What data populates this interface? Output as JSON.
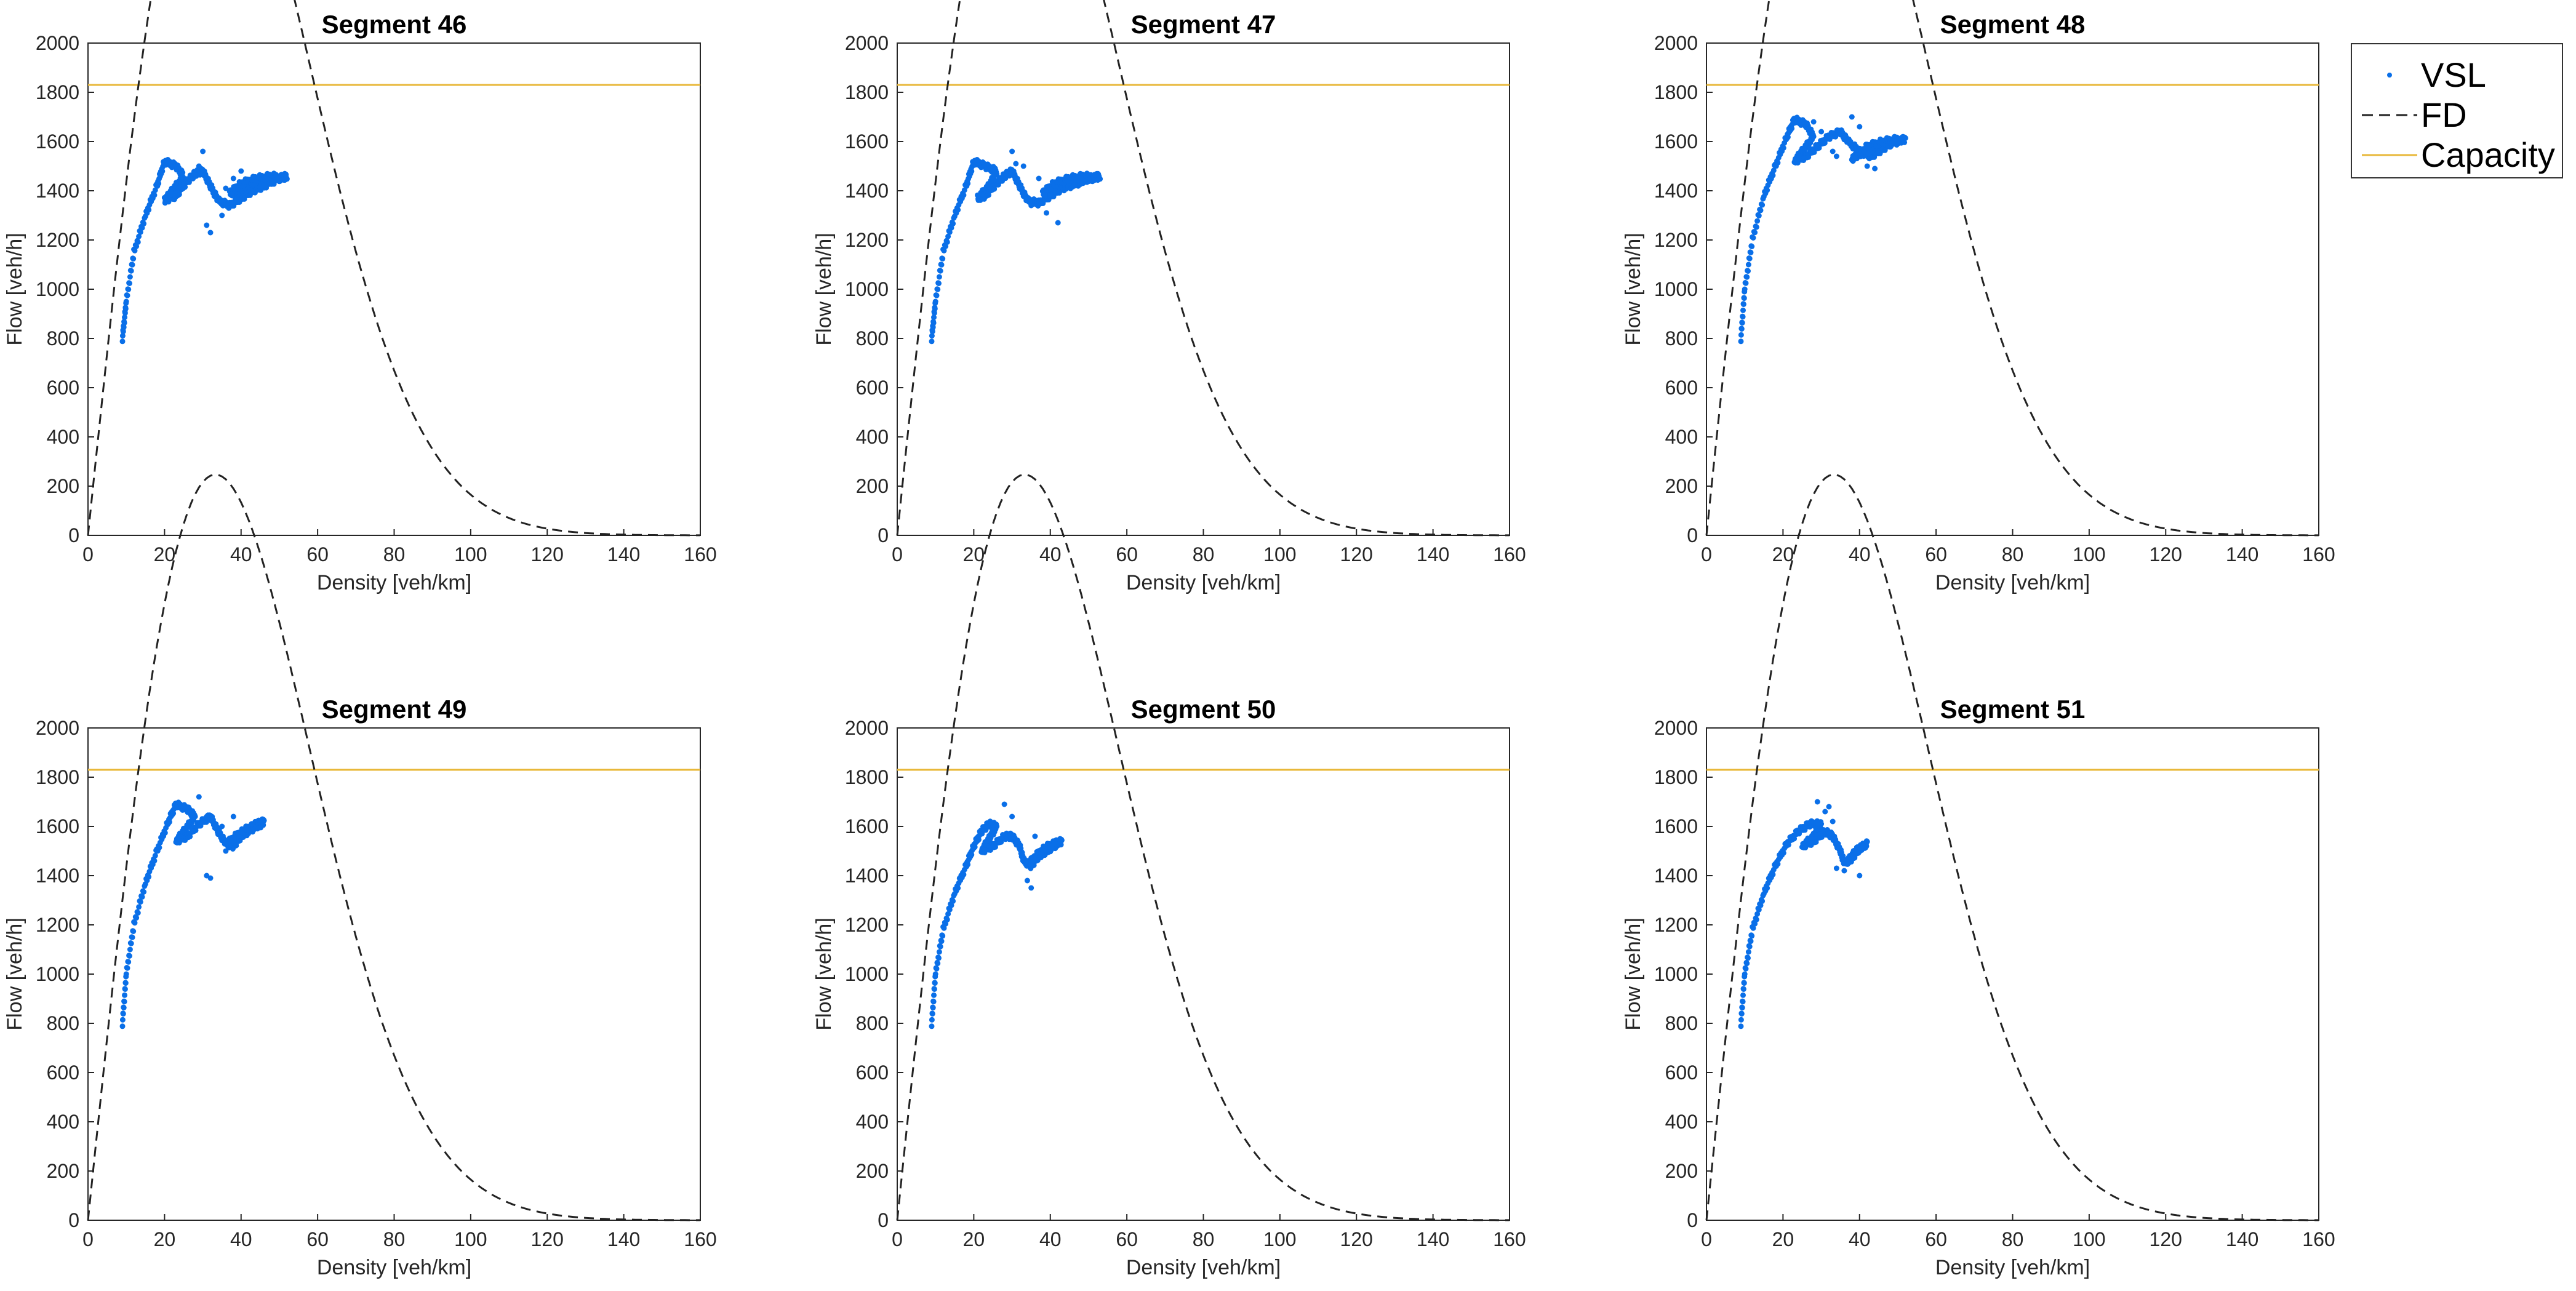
{
  "chart_data": [
    {
      "type": "scatter",
      "title": "Segment 46",
      "xlabel": "Density [veh/km]",
      "ylabel": "Flow [veh/h]",
      "xlim": [
        0,
        160
      ],
      "ylim": [
        0,
        2000
      ],
      "xticks": [
        "0",
        "20",
        "40",
        "60",
        "80",
        "100",
        "120",
        "140",
        "160"
      ],
      "yticks": [
        "0",
        "200",
        "400",
        "600",
        "800",
        "1000",
        "1200",
        "1400",
        "1600",
        "1800",
        "2000"
      ],
      "capacity": 1830,
      "vsl_trace": [
        [
          9,
          800
        ],
        [
          10,
          950
        ],
        [
          12,
          1150
        ],
        [
          15,
          1300
        ],
        [
          18,
          1420
        ],
        [
          20,
          1520
        ],
        [
          23,
          1500
        ],
        [
          25,
          1460
        ],
        [
          22,
          1400
        ],
        [
          20,
          1360
        ],
        [
          23,
          1380
        ],
        [
          26,
          1440
        ],
        [
          28,
          1470
        ],
        [
          30,
          1480
        ],
        [
          32,
          1420
        ],
        [
          34,
          1360
        ],
        [
          37,
          1340
        ],
        [
          40,
          1370
        ],
        [
          43,
          1400
        ],
        [
          46,
          1420
        ],
        [
          50,
          1450
        ],
        [
          52,
          1460
        ],
        [
          48,
          1440
        ],
        [
          44,
          1420
        ],
        [
          40,
          1400
        ],
        [
          37,
          1390
        ],
        [
          40,
          1430
        ],
        [
          44,
          1450
        ],
        [
          48,
          1460
        ],
        [
          52,
          1450
        ]
      ],
      "vsl_outliers": [
        [
          30,
          1560
        ],
        [
          29,
          1500
        ],
        [
          31,
          1260
        ],
        [
          32,
          1230
        ],
        [
          35,
          1300
        ],
        [
          38,
          1450
        ],
        [
          40,
          1480
        ],
        [
          36,
          1410
        ]
      ]
    },
    {
      "type": "scatter",
      "title": "Segment 47",
      "xlabel": "Density [veh/km]",
      "ylabel": "Flow [veh/h]",
      "xlim": [
        0,
        160
      ],
      "ylim": [
        0,
        2000
      ],
      "xticks": [
        "0",
        "20",
        "40",
        "60",
        "80",
        "100",
        "120",
        "140",
        "160"
      ],
      "yticks": [
        "0",
        "200",
        "400",
        "600",
        "800",
        "1000",
        "1200",
        "1400",
        "1600",
        "1800",
        "2000"
      ],
      "capacity": 1830,
      "vsl_trace": [
        [
          9,
          800
        ],
        [
          10,
          950
        ],
        [
          12,
          1150
        ],
        [
          15,
          1300
        ],
        [
          18,
          1420
        ],
        [
          20,
          1520
        ],
        [
          23,
          1500
        ],
        [
          26,
          1480
        ],
        [
          24,
          1420
        ],
        [
          21,
          1370
        ],
        [
          23,
          1380
        ],
        [
          26,
          1430
        ],
        [
          28,
          1460
        ],
        [
          30,
          1480
        ],
        [
          32,
          1420
        ],
        [
          34,
          1360
        ],
        [
          37,
          1350
        ],
        [
          40,
          1380
        ],
        [
          43,
          1410
        ],
        [
          46,
          1430
        ],
        [
          50,
          1450
        ],
        [
          53,
          1460
        ],
        [
          49,
          1440
        ],
        [
          45,
          1420
        ],
        [
          41,
          1400
        ],
        [
          38,
          1390
        ],
        [
          41,
          1430
        ],
        [
          45,
          1450
        ],
        [
          49,
          1460
        ],
        [
          53,
          1450
        ]
      ],
      "vsl_outliers": [
        [
          30,
          1560
        ],
        [
          31,
          1510
        ],
        [
          35,
          1340
        ],
        [
          42,
          1270
        ],
        [
          39,
          1310
        ],
        [
          37,
          1450
        ],
        [
          33,
          1500
        ]
      ]
    },
    {
      "type": "scatter",
      "title": "Segment 48",
      "xlabel": "Density [veh/km]",
      "ylabel": "Flow [veh/h]",
      "xlim": [
        0,
        160
      ],
      "ylim": [
        0,
        2000
      ],
      "xticks": [
        "0",
        "20",
        "40",
        "60",
        "80",
        "100",
        "120",
        "140",
        "160"
      ],
      "yticks": [
        "0",
        "200",
        "400",
        "600",
        "800",
        "1000",
        "1200",
        "1400",
        "1600",
        "1800",
        "2000"
      ],
      "capacity": 1830,
      "vsl_trace": [
        [
          9,
          800
        ],
        [
          10,
          1000
        ],
        [
          12,
          1200
        ],
        [
          15,
          1380
        ],
        [
          18,
          1500
        ],
        [
          21,
          1620
        ],
        [
          23,
          1690
        ],
        [
          26,
          1670
        ],
        [
          28,
          1620
        ],
        [
          25,
          1560
        ],
        [
          23,
          1520
        ],
        [
          26,
          1540
        ],
        [
          29,
          1580
        ],
        [
          32,
          1620
        ],
        [
          35,
          1640
        ],
        [
          37,
          1600
        ],
        [
          40,
          1560
        ],
        [
          43,
          1540
        ],
        [
          46,
          1570
        ],
        [
          49,
          1600
        ],
        [
          52,
          1610
        ],
        [
          48,
          1590
        ],
        [
          44,
          1570
        ],
        [
          40,
          1550
        ],
        [
          38,
          1530
        ],
        [
          42,
          1580
        ],
        [
          46,
          1600
        ],
        [
          50,
          1610
        ]
      ],
      "vsl_outliers": [
        [
          28,
          1680
        ],
        [
          30,
          1640
        ],
        [
          34,
          1540
        ],
        [
          38,
          1700
        ],
        [
          40,
          1660
        ],
        [
          42,
          1500
        ],
        [
          44,
          1490
        ],
        [
          33,
          1560
        ]
      ]
    },
    {
      "type": "scatter",
      "title": "Segment 49",
      "xlabel": "Density [veh/km]",
      "ylabel": "Flow [veh/h]",
      "xlim": [
        0,
        160
      ],
      "ylim": [
        0,
        2000
      ],
      "xticks": [
        "0",
        "20",
        "40",
        "60",
        "80",
        "100",
        "120",
        "140",
        "160"
      ],
      "yticks": [
        "0",
        "200",
        "400",
        "600",
        "800",
        "1000",
        "1200",
        "1400",
        "1600",
        "1800",
        "2000"
      ],
      "capacity": 1830,
      "vsl_trace": [
        [
          9,
          800
        ],
        [
          10,
          1000
        ],
        [
          12,
          1200
        ],
        [
          15,
          1370
        ],
        [
          18,
          1500
        ],
        [
          21,
          1620
        ],
        [
          23,
          1690
        ],
        [
          26,
          1670
        ],
        [
          28,
          1640
        ],
        [
          25,
          1580
        ],
        [
          23,
          1540
        ],
        [
          26,
          1560
        ],
        [
          29,
          1610
        ],
        [
          32,
          1640
        ],
        [
          34,
          1580
        ],
        [
          36,
          1530
        ],
        [
          38,
          1520
        ],
        [
          40,
          1560
        ],
        [
          42,
          1590
        ],
        [
          44,
          1610
        ],
        [
          46,
          1620
        ],
        [
          43,
          1590
        ],
        [
          40,
          1560
        ],
        [
          37,
          1540
        ],
        [
          40,
          1580
        ],
        [
          43,
          1600
        ],
        [
          46,
          1610
        ]
      ],
      "vsl_outliers": [
        [
          29,
          1720
        ],
        [
          31,
          1640
        ],
        [
          31,
          1400
        ],
        [
          32,
          1390
        ],
        [
          35,
          1600
        ],
        [
          38,
          1640
        ],
        [
          36,
          1500
        ]
      ]
    },
    {
      "type": "scatter",
      "title": "Segment 50",
      "xlabel": "Density [veh/km]",
      "ylabel": "Flow [veh/h]",
      "xlim": [
        0,
        160
      ],
      "ylim": [
        0,
        2000
      ],
      "xticks": [
        "0",
        "20",
        "40",
        "60",
        "80",
        "100",
        "120",
        "140",
        "160"
      ],
      "yticks": [
        "0",
        "200",
        "400",
        "600",
        "800",
        "1000",
        "1200",
        "1400",
        "1600",
        "1800",
        "2000"
      ],
      "capacity": 1830,
      "vsl_trace": [
        [
          9,
          800
        ],
        [
          10,
          1000
        ],
        [
          12,
          1180
        ],
        [
          15,
          1330
        ],
        [
          18,
          1440
        ],
        [
          20,
          1520
        ],
        [
          22,
          1580
        ],
        [
          24,
          1610
        ],
        [
          26,
          1600
        ],
        [
          24,
          1550
        ],
        [
          22,
          1500
        ],
        [
          25,
          1520
        ],
        [
          28,
          1560
        ],
        [
          30,
          1560
        ],
        [
          32,
          1520
        ],
        [
          33,
          1460
        ],
        [
          35,
          1440
        ],
        [
          37,
          1480
        ],
        [
          39,
          1500
        ],
        [
          41,
          1530
        ],
        [
          43,
          1540
        ],
        [
          40,
          1510
        ],
        [
          37,
          1480
        ],
        [
          35,
          1460
        ],
        [
          38,
          1510
        ],
        [
          41,
          1530
        ]
      ],
      "vsl_outliers": [
        [
          28,
          1690
        ],
        [
          30,
          1640
        ],
        [
          35,
          1350
        ],
        [
          34,
          1380
        ],
        [
          31,
          1540
        ],
        [
          36,
          1560
        ]
      ]
    },
    {
      "type": "scatter",
      "title": "Segment 51",
      "xlabel": "Density [veh/km]",
      "ylabel": "Flow [veh/h]",
      "xlim": [
        0,
        160
      ],
      "ylim": [
        0,
        2000
      ],
      "xticks": [
        "0",
        "20",
        "40",
        "60",
        "80",
        "100",
        "120",
        "140",
        "160"
      ],
      "yticks": [
        "0",
        "200",
        "400",
        "600",
        "800",
        "1000",
        "1200",
        "1400",
        "1600",
        "1800",
        "2000"
      ],
      "capacity": 1830,
      "vsl_trace": [
        [
          9,
          800
        ],
        [
          10,
          1000
        ],
        [
          12,
          1180
        ],
        [
          15,
          1330
        ],
        [
          18,
          1440
        ],
        [
          21,
          1530
        ],
        [
          24,
          1580
        ],
        [
          27,
          1610
        ],
        [
          30,
          1610
        ],
        [
          28,
          1560
        ],
        [
          25,
          1520
        ],
        [
          28,
          1540
        ],
        [
          31,
          1580
        ],
        [
          33,
          1560
        ],
        [
          35,
          1500
        ],
        [
          36,
          1450
        ],
        [
          38,
          1470
        ],
        [
          40,
          1510
        ],
        [
          42,
          1530
        ],
        [
          39,
          1500
        ],
        [
          37,
          1460
        ],
        [
          39,
          1500
        ],
        [
          41,
          1520
        ]
      ],
      "vsl_outliers": [
        [
          29,
          1700
        ],
        [
          31,
          1660
        ],
        [
          32,
          1680
        ],
        [
          34,
          1430
        ],
        [
          36,
          1420
        ],
        [
          40,
          1400
        ],
        [
          33,
          1620
        ]
      ]
    }
  ],
  "fd_model": {
    "vf": 150,
    "kc": 33.3,
    "kmax": 160
  },
  "legend": {
    "entries": [
      {
        "label": "VSL",
        "color": "#0a6fe8",
        "style": "dots"
      },
      {
        "label": "FD",
        "color": "#222222",
        "style": "dashed"
      },
      {
        "label": "Capacity",
        "color": "#e8b83a",
        "style": "solid"
      }
    ]
  },
  "colors": {
    "vsl": "#0a6fe8",
    "fd": "#222222",
    "capacity": "#e8b83a",
    "axis": "#262626"
  }
}
